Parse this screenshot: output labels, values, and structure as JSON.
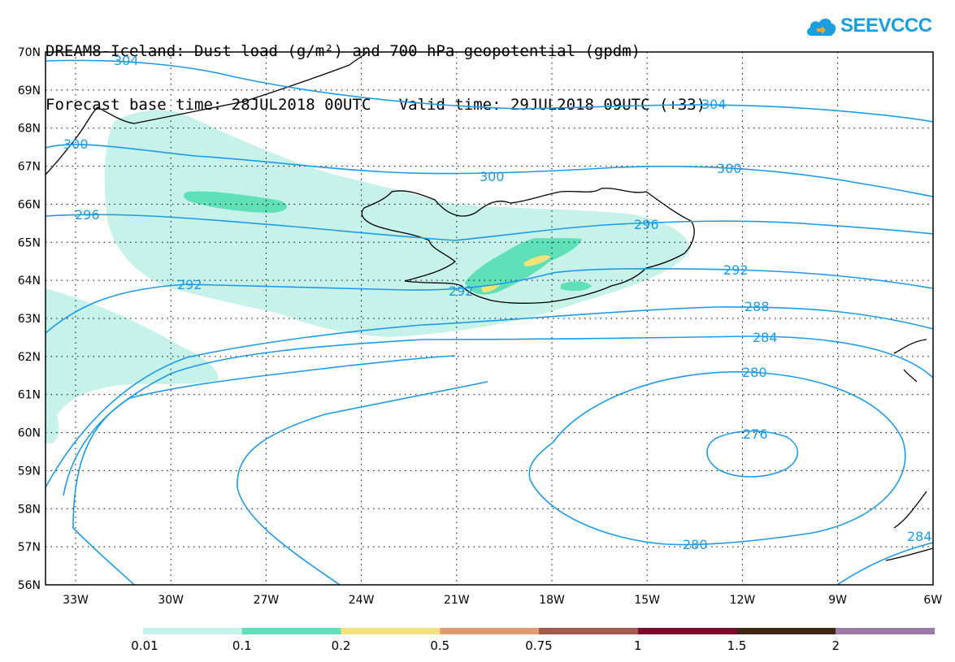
{
  "header": {
    "title": "DREAM8-Iceland: Dust load (g/m²) and 700 hPa geopotential (gpdm)",
    "forecast_base": "Forecast base time: 28JUL2018 00UTC",
    "valid_time": "Valid time: 29JUL2018 09UTC (+33)"
  },
  "logo": {
    "text": "SEEVCCC",
    "icon": "cloud-icon",
    "color": "#1a9ee0"
  },
  "map": {
    "lat_labels": [
      "70N",
      "69N",
      "68N",
      "67N",
      "66N",
      "65N",
      "64N",
      "63N",
      "62N",
      "61N",
      "60N",
      "59N",
      "58N",
      "57N",
      "56N"
    ],
    "lon_labels": [
      "33W",
      "30W",
      "27W",
      "24W",
      "21W",
      "18W",
      "15W",
      "12W",
      "9W",
      "6W"
    ],
    "contour_labels": [
      "304",
      "304",
      "300",
      "300",
      "300",
      "296",
      "296",
      "292",
      "292",
      "292",
      "288",
      "284",
      "280",
      "280",
      "276",
      "284"
    ],
    "contour_color": "#1e9be8"
  },
  "colorbar": {
    "colors": [
      "#c6f2ea",
      "#5fe0b6",
      "#f2e27a",
      "#e39a6e",
      "#a55a4e",
      "#7d0a2a",
      "#3c2614",
      "#9a7aa6"
    ],
    "labels": [
      "0.01",
      "0.1",
      "0.2",
      "0.5",
      "0.75",
      "1",
      "1.5",
      "2"
    ]
  }
}
